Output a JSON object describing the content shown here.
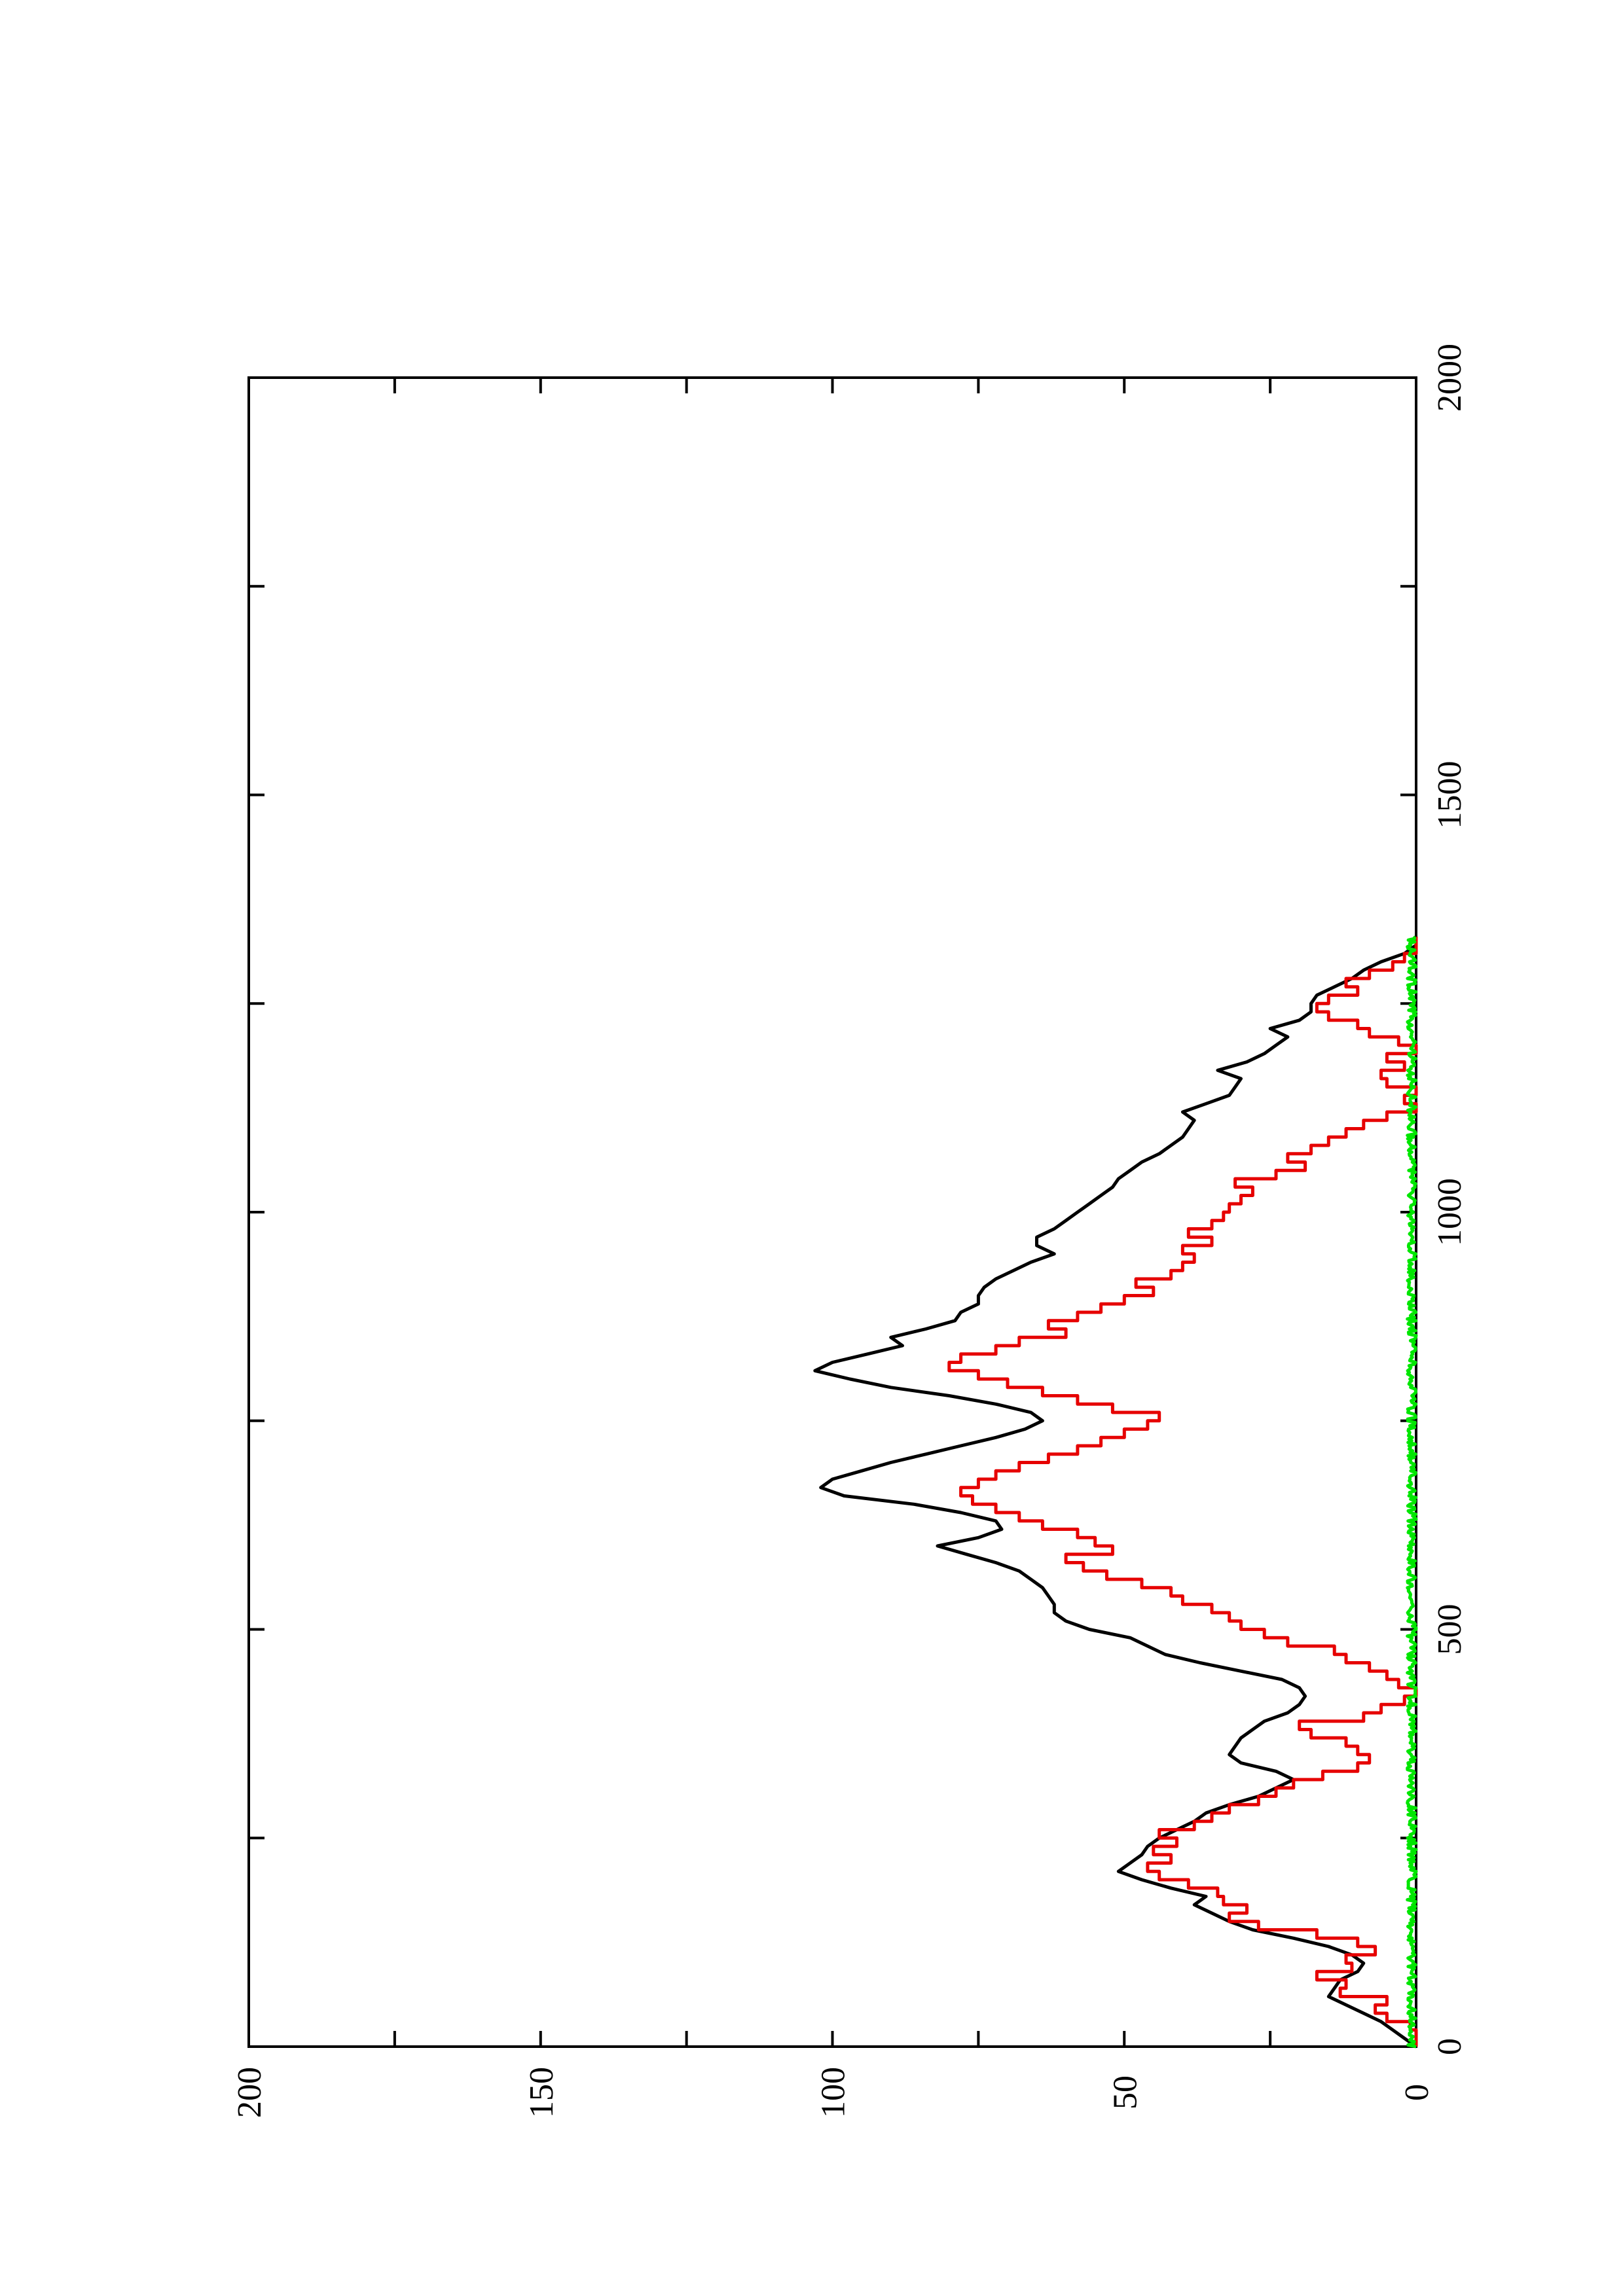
{
  "chart_data": {
    "type": "line",
    "title": "",
    "xlabel": "",
    "ylabel": "",
    "xlim": [
      0,
      2000
    ],
    "ylim": [
      0,
      200
    ],
    "x_ticks": [
      "0",
      "500",
      "1000",
      "1500",
      "2000"
    ],
    "y_ticks": [
      "0",
      "50",
      "100",
      "150",
      "200"
    ],
    "grid": false,
    "orientation": "page rotated 90° counter-clockwise",
    "series": [
      {
        "color": "#000000",
        "style": "solid",
        "points": [
          [
            0,
            0
          ],
          [
            10,
            2
          ],
          [
            20,
            4
          ],
          [
            30,
            6
          ],
          [
            40,
            9
          ],
          [
            50,
            12
          ],
          [
            60,
            15
          ],
          [
            70,
            14
          ],
          [
            80,
            13
          ],
          [
            90,
            10
          ],
          [
            100,
            9
          ],
          [
            110,
            11
          ],
          [
            120,
            15
          ],
          [
            130,
            21
          ],
          [
            140,
            28
          ],
          [
            150,
            32
          ],
          [
            160,
            35
          ],
          [
            170,
            38
          ],
          [
            180,
            36
          ],
          [
            190,
            42
          ],
          [
            200,
            47
          ],
          [
            210,
            51
          ],
          [
            220,
            49
          ],
          [
            230,
            47
          ],
          [
            240,
            46
          ],
          [
            250,
            44
          ],
          [
            260,
            41
          ],
          [
            270,
            38
          ],
          [
            280,
            36
          ],
          [
            290,
            32
          ],
          [
            300,
            27
          ],
          [
            310,
            24
          ],
          [
            320,
            21
          ],
          [
            330,
            24
          ],
          [
            340,
            30
          ],
          [
            350,
            32
          ],
          [
            360,
            31
          ],
          [
            370,
            30
          ],
          [
            380,
            28
          ],
          [
            390,
            26
          ],
          [
            400,
            22
          ],
          [
            410,
            20
          ],
          [
            420,
            19
          ],
          [
            430,
            20
          ],
          [
            440,
            23
          ],
          [
            450,
            30
          ],
          [
            460,
            37
          ],
          [
            470,
            43
          ],
          [
            480,
            46
          ],
          [
            490,
            49
          ],
          [
            500,
            56
          ],
          [
            510,
            60
          ],
          [
            520,
            62
          ],
          [
            530,
            62
          ],
          [
            540,
            63
          ],
          [
            550,
            64
          ],
          [
            560,
            66
          ],
          [
            570,
            68
          ],
          [
            580,
            72
          ],
          [
            590,
            77
          ],
          [
            600,
            82
          ],
          [
            610,
            75
          ],
          [
            620,
            71
          ],
          [
            630,
            72
          ],
          [
            640,
            78
          ],
          [
            650,
            86
          ],
          [
            660,
            98
          ],
          [
            670,
            102
          ],
          [
            680,
            100
          ],
          [
            690,
            95
          ],
          [
            700,
            90
          ],
          [
            710,
            84
          ],
          [
            720,
            78
          ],
          [
            730,
            72
          ],
          [
            740,
            67
          ],
          [
            750,
            64
          ],
          [
            760,
            66
          ],
          [
            770,
            72
          ],
          [
            780,
            80
          ],
          [
            790,
            90
          ],
          [
            800,
            97
          ],
          [
            810,
            103
          ],
          [
            820,
            100
          ],
          [
            830,
            94
          ],
          [
            840,
            88
          ],
          [
            850,
            90
          ],
          [
            860,
            84
          ],
          [
            870,
            79
          ],
          [
            880,
            78
          ],
          [
            890,
            75
          ],
          [
            900,
            75
          ],
          [
            910,
            74
          ],
          [
            920,
            72
          ],
          [
            930,
            69
          ],
          [
            940,
            66
          ],
          [
            950,
            62
          ],
          [
            960,
            65
          ],
          [
            970,
            65
          ],
          [
            980,
            62
          ],
          [
            990,
            60
          ],
          [
            1000,
            58
          ],
          [
            1010,
            56
          ],
          [
            1020,
            54
          ],
          [
            1030,
            52
          ],
          [
            1040,
            51
          ],
          [
            1050,
            49
          ],
          [
            1060,
            47
          ],
          [
            1070,
            44
          ],
          [
            1080,
            42
          ],
          [
            1090,
            40
          ],
          [
            1100,
            39
          ],
          [
            1110,
            38
          ],
          [
            1120,
            40
          ],
          [
            1130,
            36
          ],
          [
            1140,
            32
          ],
          [
            1150,
            31
          ],
          [
            1160,
            30
          ],
          [
            1170,
            34
          ],
          [
            1180,
            29
          ],
          [
            1190,
            26
          ],
          [
            1200,
            24
          ],
          [
            1210,
            22
          ],
          [
            1220,
            25
          ],
          [
            1230,
            20
          ],
          [
            1240,
            18
          ],
          [
            1250,
            18
          ],
          [
            1260,
            17
          ],
          [
            1270,
            14
          ],
          [
            1280,
            11
          ],
          [
            1290,
            9
          ],
          [
            1300,
            6
          ],
          [
            1310,
            2
          ],
          [
            1320,
            0
          ],
          [
            1330,
            0
          ]
        ]
      },
      {
        "color": "#e60000",
        "style": "step",
        "points": [
          [
            0,
            0
          ],
          [
            20,
            1
          ],
          [
            30,
            5
          ],
          [
            40,
            7
          ],
          [
            50,
            5
          ],
          [
            60,
            13
          ],
          [
            70,
            12
          ],
          [
            80,
            17
          ],
          [
            90,
            11
          ],
          [
            100,
            12
          ],
          [
            110,
            7
          ],
          [
            120,
            10
          ],
          [
            130,
            17
          ],
          [
            140,
            27
          ],
          [
            150,
            32
          ],
          [
            160,
            29
          ],
          [
            170,
            33
          ],
          [
            180,
            34
          ],
          [
            190,
            39
          ],
          [
            200,
            44
          ],
          [
            210,
            46
          ],
          [
            220,
            42
          ],
          [
            230,
            45
          ],
          [
            240,
            41
          ],
          [
            250,
            44
          ],
          [
            260,
            38
          ],
          [
            270,
            35
          ],
          [
            280,
            32
          ],
          [
            290,
            27
          ],
          [
            300,
            24
          ],
          [
            310,
            21
          ],
          [
            320,
            16
          ],
          [
            330,
            10
          ],
          [
            340,
            8
          ],
          [
            350,
            10
          ],
          [
            360,
            12
          ],
          [
            370,
            18
          ],
          [
            380,
            20
          ],
          [
            390,
            9
          ],
          [
            400,
            6
          ],
          [
            410,
            2
          ],
          [
            420,
            0
          ],
          [
            430,
            3
          ],
          [
            440,
            5
          ],
          [
            450,
            8
          ],
          [
            460,
            12
          ],
          [
            470,
            14
          ],
          [
            480,
            22
          ],
          [
            490,
            26
          ],
          [
            500,
            30
          ],
          [
            510,
            32
          ],
          [
            520,
            35
          ],
          [
            530,
            40
          ],
          [
            540,
            42
          ],
          [
            550,
            47
          ],
          [
            560,
            53
          ],
          [
            570,
            57
          ],
          [
            580,
            60
          ],
          [
            590,
            52
          ],
          [
            600,
            55
          ],
          [
            610,
            58
          ],
          [
            620,
            64
          ],
          [
            630,
            68
          ],
          [
            640,
            72
          ],
          [
            650,
            76
          ],
          [
            660,
            78
          ],
          [
            670,
            75
          ],
          [
            680,
            72
          ],
          [
            690,
            68
          ],
          [
            700,
            63
          ],
          [
            710,
            58
          ],
          [
            720,
            54
          ],
          [
            730,
            50
          ],
          [
            740,
            46
          ],
          [
            750,
            44
          ],
          [
            760,
            52
          ],
          [
            770,
            58
          ],
          [
            780,
            64
          ],
          [
            790,
            70
          ],
          [
            800,
            75
          ],
          [
            810,
            80
          ],
          [
            820,
            78
          ],
          [
            830,
            72
          ],
          [
            840,
            68
          ],
          [
            850,
            60
          ],
          [
            860,
            63
          ],
          [
            870,
            58
          ],
          [
            880,
            54
          ],
          [
            890,
            50
          ],
          [
            900,
            45
          ],
          [
            910,
            48
          ],
          [
            920,
            42
          ],
          [
            930,
            40
          ],
          [
            940,
            38
          ],
          [
            950,
            40
          ],
          [
            960,
            35
          ],
          [
            970,
            39
          ],
          [
            980,
            35
          ],
          [
            990,
            33
          ],
          [
            1000,
            32
          ],
          [
            1010,
            30
          ],
          [
            1020,
            28
          ],
          [
            1030,
            31
          ],
          [
            1040,
            24
          ],
          [
            1050,
            19
          ],
          [
            1060,
            22
          ],
          [
            1070,
            18
          ],
          [
            1080,
            15
          ],
          [
            1090,
            12
          ],
          [
            1100,
            9
          ],
          [
            1110,
            5
          ],
          [
            1120,
            0
          ],
          [
            1130,
            2
          ],
          [
            1140,
            0
          ],
          [
            1150,
            5
          ],
          [
            1160,
            6
          ],
          [
            1170,
            2
          ],
          [
            1180,
            5
          ],
          [
            1190,
            0
          ],
          [
            1200,
            3
          ],
          [
            1210,
            8
          ],
          [
            1220,
            10
          ],
          [
            1230,
            15
          ],
          [
            1240,
            17
          ],
          [
            1250,
            15
          ],
          [
            1260,
            10
          ],
          [
            1270,
            12
          ],
          [
            1280,
            8
          ],
          [
            1290,
            4
          ],
          [
            1300,
            2
          ],
          [
            1310,
            0
          ],
          [
            1330,
            0
          ]
        ]
      },
      {
        "color": "#00e600",
        "style": "noisy baseline",
        "baseline": 0,
        "noise_amplitude": 1.5,
        "x_range": [
          0,
          1330
        ]
      }
    ]
  }
}
